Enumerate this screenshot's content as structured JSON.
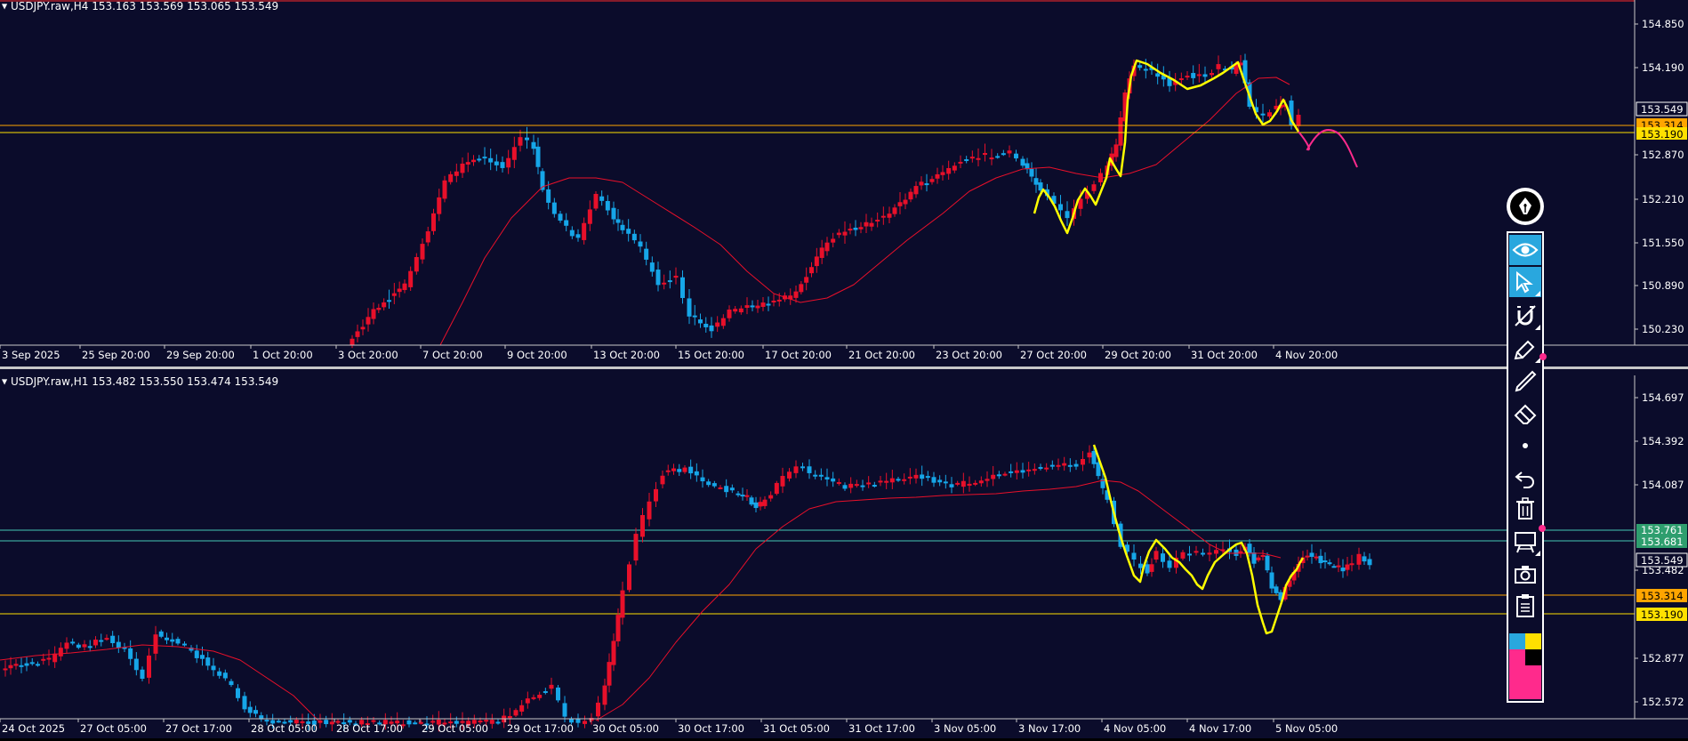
{
  "colors": {
    "background": "#0b0c2b",
    "bull_candle": "#e8102a",
    "bear_candle": "#16a6e8",
    "moving_average": "#e8102a",
    "trendline_yellow": "#ffff00",
    "projection_pink": "#ff2a8c",
    "level_orange": "#ffa500",
    "level_yellow": "#ffe000",
    "level_teal": "#46c8b4",
    "ask_line_red": "#ff2a2a"
  },
  "top_pane": {
    "header": "USDJPY.raw,H4  153.163 153.569 153.065 153.549",
    "price_scale": [
      "154.850",
      "154.190",
      "152.870",
      "152.210",
      "151.550",
      "150.890",
      "150.230"
    ],
    "price_tags": {
      "current": "153.549",
      "orange": "153.314",
      "yellow": "153.190"
    },
    "time_labels": [
      "3 Sep 2025",
      "25 Sep 20:00",
      "29 Sep 20:00",
      "1 Oct 20:00",
      "3 Oct 20:00",
      "7 Oct 20:00",
      "9 Oct 20:00",
      "13 Oct 20:00",
      "15 Oct 20:00",
      "17 Oct 20:00",
      "21 Oct 20:00",
      "23 Oct 20:00",
      "27 Oct 20:00",
      "29 Oct 20:00",
      "31 Oct 20:00",
      "4 Nov 20:00"
    ]
  },
  "bottom_pane": {
    "header": "USDJPY.raw,H1  153.482 153.550 153.474 153.549",
    "price_scale": [
      "154.697",
      "154.392",
      "154.087",
      "153.482",
      "152.877",
      "152.572"
    ],
    "price_tags": {
      "teal_upper": "153.761",
      "teal_lower": "153.681",
      "current": "153.549",
      "orange": "153.314",
      "yellow": "153.190"
    },
    "time_labels": [
      "24 Oct 2025",
      "27 Oct 05:00",
      "27 Oct 17:00",
      "28 Oct 05:00",
      "28 Oct 17:00",
      "29 Oct 05:00",
      "29 Oct 17:00",
      "30 Oct 05:00",
      "30 Oct 17:00",
      "31 Oct 05:00",
      "31 Oct 17:00",
      "3 Nov 05:00",
      "3 Nov 17:00",
      "4 Nov 05:00",
      "4 Nov 17:00",
      "5 Nov 05:00"
    ]
  },
  "toolbar": {
    "tools": [
      "pen-brand",
      "eye",
      "cursor",
      "no-magnet",
      "pen-settings",
      "line",
      "eraser",
      "dot",
      "undo",
      "trash",
      "presentation",
      "camera",
      "clipboard"
    ],
    "palette": [
      "#29a7de",
      "#ffe000",
      "#ff2a8c",
      "#000000",
      "#ff2a8c"
    ]
  }
}
